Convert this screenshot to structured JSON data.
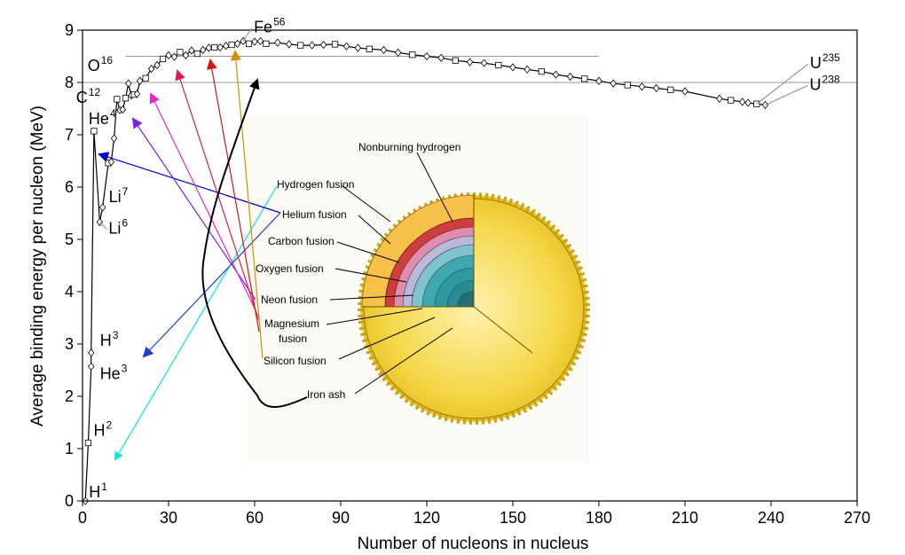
{
  "chart_data": {
    "type": "scatter",
    "xlabel": "Number of nucleons in nucleus",
    "ylabel": "Average binding energy per nucleon (MeV)",
    "xlim": [
      0,
      270
    ],
    "ylim": [
      0,
      9
    ],
    "xticks": [
      "0",
      "30",
      "60",
      "90",
      "120",
      "150",
      "180",
      "210",
      "240",
      "270"
    ],
    "yticks": [
      "0",
      "1",
      "2",
      "3",
      "4",
      "5",
      "6",
      "7",
      "8",
      "9"
    ],
    "reference_lines": [
      8.0,
      8.5
    ],
    "curve_points": [
      {
        "x": 1,
        "y": 0.0
      },
      {
        "x": 2,
        "y": 1.11
      },
      {
        "x": 3,
        "y": 2.57
      },
      {
        "x": 3,
        "y": 2.83
      },
      {
        "x": 4,
        "y": 7.07
      },
      {
        "x": 6,
        "y": 5.33
      },
      {
        "x": 7,
        "y": 5.61
      },
      {
        "x": 9,
        "y": 6.46
      },
      {
        "x": 10,
        "y": 6.48
      },
      {
        "x": 11,
        "y": 6.93
      },
      {
        "x": 12,
        "y": 7.68
      },
      {
        "x": 13,
        "y": 7.47
      },
      {
        "x": 14,
        "y": 7.48
      },
      {
        "x": 15,
        "y": 7.7
      },
      {
        "x": 16,
        "y": 7.98
      },
      {
        "x": 17,
        "y": 7.75
      },
      {
        "x": 18,
        "y": 7.77
      },
      {
        "x": 19,
        "y": 7.78
      },
      {
        "x": 20,
        "y": 8.03
      },
      {
        "x": 22,
        "y": 8.08
      },
      {
        "x": 24,
        "y": 8.26
      },
      {
        "x": 26,
        "y": 8.33
      },
      {
        "x": 28,
        "y": 8.45
      },
      {
        "x": 30,
        "y": 8.52
      },
      {
        "x": 32,
        "y": 8.49
      },
      {
        "x": 34,
        "y": 8.58
      },
      {
        "x": 36,
        "y": 8.52
      },
      {
        "x": 38,
        "y": 8.61
      },
      {
        "x": 40,
        "y": 8.55
      },
      {
        "x": 42,
        "y": 8.62
      },
      {
        "x": 44,
        "y": 8.66
      },
      {
        "x": 46,
        "y": 8.67
      },
      {
        "x": 48,
        "y": 8.67
      },
      {
        "x": 50,
        "y": 8.7
      },
      {
        "x": 52,
        "y": 8.72
      },
      {
        "x": 54,
        "y": 8.74
      },
      {
        "x": 56,
        "y": 8.79
      },
      {
        "x": 58,
        "y": 8.74
      },
      {
        "x": 60,
        "y": 8.78
      },
      {
        "x": 62,
        "y": 8.79
      },
      {
        "x": 64,
        "y": 8.74
      },
      {
        "x": 68,
        "y": 8.76
      },
      {
        "x": 72,
        "y": 8.73
      },
      {
        "x": 76,
        "y": 8.71
      },
      {
        "x": 80,
        "y": 8.71
      },
      {
        "x": 84,
        "y": 8.72
      },
      {
        "x": 88,
        "y": 8.73
      },
      {
        "x": 92,
        "y": 8.69
      },
      {
        "x": 96,
        "y": 8.66
      },
      {
        "x": 100,
        "y": 8.64
      },
      {
        "x": 105,
        "y": 8.62
      },
      {
        "x": 110,
        "y": 8.57
      },
      {
        "x": 115,
        "y": 8.53
      },
      {
        "x": 120,
        "y": 8.5
      },
      {
        "x": 125,
        "y": 8.47
      },
      {
        "x": 130,
        "y": 8.42
      },
      {
        "x": 135,
        "y": 8.39
      },
      {
        "x": 140,
        "y": 8.37
      },
      {
        "x": 145,
        "y": 8.33
      },
      {
        "x": 150,
        "y": 8.29
      },
      {
        "x": 155,
        "y": 8.25
      },
      {
        "x": 160,
        "y": 8.21
      },
      {
        "x": 165,
        "y": 8.15
      },
      {
        "x": 170,
        "y": 8.11
      },
      {
        "x": 175,
        "y": 8.07
      },
      {
        "x": 180,
        "y": 8.03
      },
      {
        "x": 185,
        "y": 7.98
      },
      {
        "x": 190,
        "y": 7.95
      },
      {
        "x": 195,
        "y": 7.92
      },
      {
        "x": 200,
        "y": 7.89
      },
      {
        "x": 205,
        "y": 7.86
      },
      {
        "x": 210,
        "y": 7.83
      },
      {
        "x": 222,
        "y": 7.69
      },
      {
        "x": 226,
        "y": 7.66
      },
      {
        "x": 230,
        "y": 7.63
      },
      {
        "x": 232,
        "y": 7.61
      },
      {
        "x": 235,
        "y": 7.59
      },
      {
        "x": 238,
        "y": 7.57
      }
    ],
    "nuclide_labels": [
      {
        "element": "H",
        "mass": "1",
        "x": 1,
        "y": 0.0
      },
      {
        "element": "H",
        "mass": "2",
        "x": 2,
        "y": 1.11
      },
      {
        "element": "H",
        "mass": "3",
        "x": 3,
        "y": 2.83
      },
      {
        "element": "He",
        "mass": "3",
        "x": 3,
        "y": 2.57
      },
      {
        "element": "He",
        "mass": "4",
        "x": 4,
        "y": 7.07
      },
      {
        "element": "Li",
        "mass": "6",
        "x": 6,
        "y": 5.33
      },
      {
        "element": "Li",
        "mass": "7",
        "x": 7,
        "y": 5.61
      },
      {
        "element": "C",
        "mass": "12",
        "x": 12,
        "y": 7.68
      },
      {
        "element": "O",
        "mass": "16",
        "x": 16,
        "y": 7.98
      },
      {
        "element": "Fe",
        "mass": "56",
        "x": 56,
        "y": 8.79
      },
      {
        "element": "U",
        "mass": "235",
        "x": 235,
        "y": 7.59
      },
      {
        "element": "U",
        "mass": "238",
        "x": 238,
        "y": 7.57
      }
    ]
  },
  "inset": {
    "labels": [
      "Nonburning hydrogen",
      "Hydrogen fusion",
      "Helium fusion",
      "Carbon fusion",
      "Oxygen fusion",
      "Neon fusion",
      "Magnesium",
      "fusion",
      "Silicon fusion",
      "Iron ash"
    ],
    "colors": {
      "outer": "#f3d43a",
      "hydrogen_fusion": "#f7c24a",
      "helium": "#cf3d3d",
      "carbon": "#e08cae",
      "oxygen": "#b9b9d9",
      "neon": "#7fc4cc",
      "core": "#2e9aa3"
    }
  },
  "arrows": {
    "colors": {
      "hydrogen": "#00e5ee",
      "helium_a": "#0000cc",
      "helium_b": "#1f3fd0",
      "carbon": "#7a22e0",
      "oxygen": "#ee22cc",
      "neon": "#e0194a",
      "magnesium": "#dd1111",
      "silicon": "#d09000",
      "iron": "#000000"
    }
  }
}
